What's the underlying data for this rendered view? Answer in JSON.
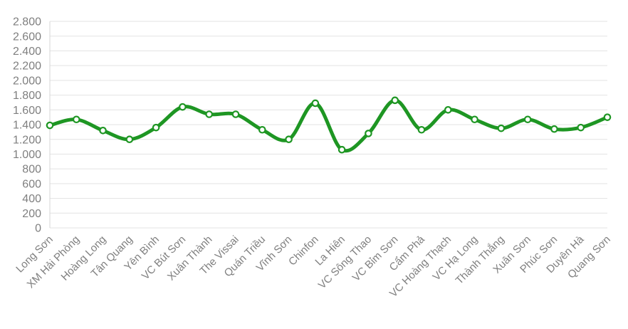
{
  "page": {
    "background_color": "#ffffff"
  },
  "chart_data": {
    "type": "line",
    "title": "",
    "legend": "none",
    "grid": "horizontal",
    "smooth": true,
    "line_color": "#1e9623",
    "marker_style": "circle-outline",
    "marker_fill": "#ffffff",
    "label_color": "#7f7f7f",
    "gridline_color": "#e3e3e3",
    "axis_line_color": "#d6d6d6",
    "x_label_rotation": -45,
    "ylim": [
      0,
      2800
    ],
    "y_tick_step": 200,
    "y_tick_labels": [
      "0",
      "200",
      "400",
      "600",
      "800",
      "1.000",
      "1.200",
      "1.400",
      "1.600",
      "1.800",
      "2.000",
      "2.200",
      "2.400",
      "2.600",
      "2.800"
    ],
    "categories": [
      "Long Sơn",
      "XM Hải Phòng",
      "Hoàng Long",
      "Tân Quang",
      "Yên Bình",
      "VC Bút Sơn",
      "Xuân Thành",
      "The Vissai",
      "Quán Triều",
      "Vĩnh Sơn",
      "Chinfon",
      "La Hiên",
      "VC Sông Thao",
      "VC Bỉm Sơn",
      "Cẩm Phả",
      "VC Hoàng Thạch",
      "VC Hạ Long",
      "Thành Thắng",
      "Xuân Sơn",
      "Phúc Sơn",
      "Duyên Hà",
      "Quang Sơn"
    ],
    "series": [
      {
        "name": "",
        "values": [
          1390,
          1470,
          1320,
          1200,
          1360,
          1640,
          1540,
          1540,
          1330,
          1200,
          1690,
          1060,
          1280,
          1730,
          1330,
          1600,
          1470,
          1350,
          1470,
          1340,
          1360,
          1500
        ]
      }
    ]
  }
}
